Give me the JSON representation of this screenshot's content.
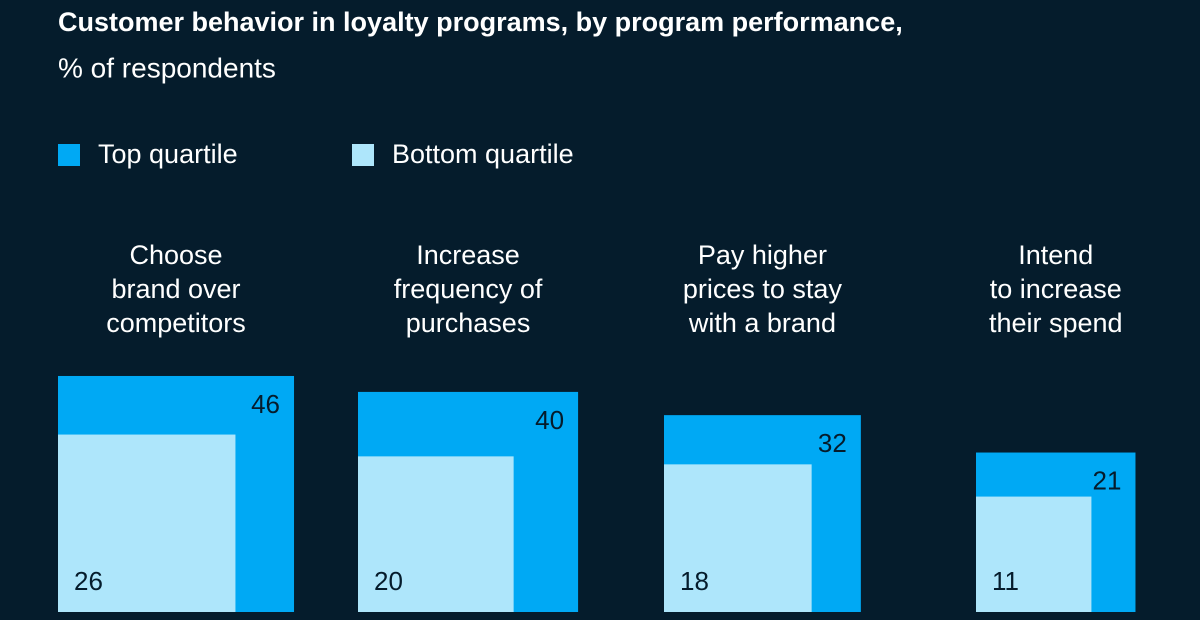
{
  "chart_data": {
    "type": "nested-square",
    "title": "Customer behavior in loyalty programs, by program performance,",
    "subtitle": "% of respondents",
    "categories": [
      "Choose\nbrand over\ncompetitors",
      "Increase\nfrequency of\npurchases",
      "Pay higher\nprices to stay\nwith a brand",
      "Intend\nto increase\ntheir spend"
    ],
    "series": [
      {
        "name": "Top quartile",
        "color": "#00a9f4",
        "values": [
          46,
          40,
          32,
          21
        ]
      },
      {
        "name": "Bottom quartile",
        "color": "#aee6fb",
        "values": [
          26,
          20,
          18,
          11
        ]
      }
    ]
  }
}
